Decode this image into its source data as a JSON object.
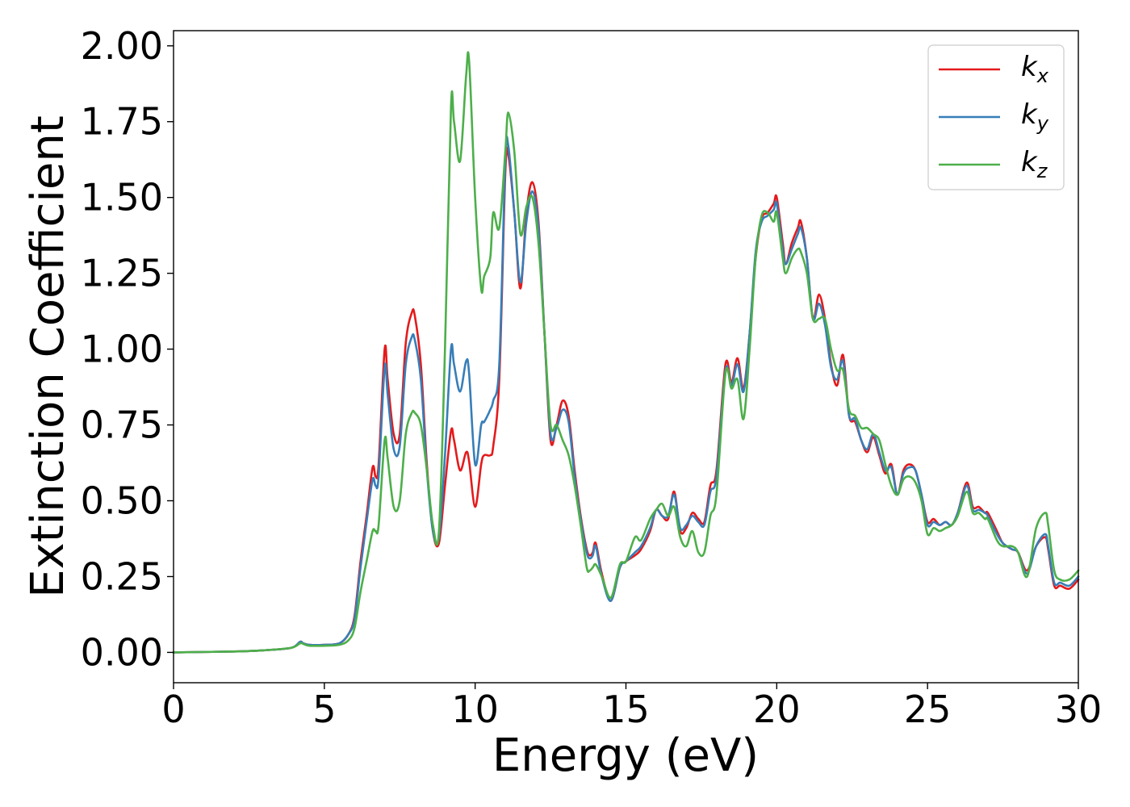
{
  "chart_data": {
    "type": "line",
    "xlabel": "Energy (eV)",
    "ylabel": "Extinction Coefficient",
    "xlim": [
      0,
      30
    ],
    "ylim": [
      -0.1,
      2.05
    ],
    "xticks": [
      0,
      5,
      10,
      15,
      20,
      25,
      30
    ],
    "xtick_labels": [
      "0",
      "5",
      "10",
      "15",
      "20",
      "25",
      "30"
    ],
    "yticks": [
      0,
      0.25,
      0.5,
      0.75,
      1.0,
      1.25,
      1.5,
      1.75,
      2.0
    ],
    "ytick_labels": [
      "0.00",
      "0.25",
      "0.50",
      "0.75",
      "1.00",
      "1.25",
      "1.50",
      "1.75",
      "2.00"
    ],
    "grid": false,
    "legend_position": "top-right",
    "series": [
      {
        "name": "k_x",
        "label_main": "k",
        "label_sub": "x",
        "color": "#e41a1c",
        "x": [
          0,
          2,
          3,
          3.9,
          4.2,
          4.3,
          4.5,
          5,
          5.5,
          5.8,
          6.0,
          6.2,
          6.4,
          6.6,
          6.7,
          6.8,
          7.0,
          7.1,
          7.3,
          7.5,
          7.7,
          7.9,
          8.0,
          8.2,
          8.4,
          8.6,
          8.8,
          9.0,
          9.2,
          9.3,
          9.5,
          9.7,
          9.8,
          10.0,
          10.2,
          10.3,
          10.5,
          10.6,
          10.8,
          11.0,
          11.1,
          11.3,
          11.5,
          11.7,
          11.9,
          12.1,
          12.3,
          12.5,
          12.7,
          12.9,
          13.1,
          13.3,
          13.5,
          13.7,
          13.8,
          13.9,
          14.0,
          14.2,
          14.5,
          14.8,
          15.0,
          15.3,
          15.5,
          15.8,
          16.0,
          16.2,
          16.4,
          16.6,
          16.8,
          17.0,
          17.2,
          17.4,
          17.6,
          17.8,
          18.0,
          18.3,
          18.5,
          18.7,
          18.9,
          19.1,
          19.3,
          19.5,
          19.7,
          19.9,
          20.0,
          20.2,
          20.3,
          20.5,
          20.7,
          20.8,
          21.0,
          21.2,
          21.4,
          21.6,
          21.8,
          22.0,
          22.2,
          22.4,
          22.6,
          22.8,
          23.0,
          23.2,
          23.4,
          23.6,
          23.8,
          24.0,
          24.2,
          24.4,
          24.6,
          24.8,
          25.0,
          25.2,
          25.4,
          25.6,
          25.8,
          26.0,
          26.3,
          26.5,
          26.7,
          26.9,
          27.0,
          27.3,
          27.5,
          27.8,
          28.0,
          28.3,
          28.6,
          28.9,
          29.0,
          29.2,
          29.4,
          29.7,
          30.0
        ],
        "y": [
          0.0,
          0.003,
          0.007,
          0.015,
          0.035,
          0.03,
          0.025,
          0.025,
          0.03,
          0.06,
          0.12,
          0.3,
          0.45,
          0.61,
          0.58,
          0.62,
          1.0,
          0.9,
          0.72,
          0.72,
          1.02,
          1.12,
          1.11,
          0.95,
          0.62,
          0.4,
          0.36,
          0.55,
          0.73,
          0.7,
          0.6,
          0.66,
          0.63,
          0.48,
          0.62,
          0.65,
          0.65,
          0.68,
          0.9,
          1.58,
          1.64,
          1.45,
          1.2,
          1.45,
          1.55,
          1.42,
          1.05,
          0.7,
          0.75,
          0.83,
          0.78,
          0.6,
          0.45,
          0.34,
          0.32,
          0.33,
          0.36,
          0.26,
          0.17,
          0.28,
          0.3,
          0.32,
          0.34,
          0.4,
          0.47,
          0.45,
          0.44,
          0.53,
          0.4,
          0.41,
          0.46,
          0.44,
          0.43,
          0.55,
          0.6,
          0.95,
          0.89,
          0.97,
          0.87,
          1.05,
          1.3,
          1.43,
          1.45,
          1.48,
          1.5,
          1.35,
          1.28,
          1.35,
          1.4,
          1.42,
          1.3,
          1.1,
          1.18,
          1.1,
          0.95,
          0.88,
          0.98,
          0.78,
          0.76,
          0.7,
          0.66,
          0.71,
          0.65,
          0.59,
          0.62,
          0.52,
          0.6,
          0.62,
          0.6,
          0.52,
          0.43,
          0.44,
          0.42,
          0.43,
          0.42,
          0.46,
          0.56,
          0.48,
          0.48,
          0.46,
          0.46,
          0.4,
          0.36,
          0.34,
          0.33,
          0.27,
          0.35,
          0.38,
          0.34,
          0.22,
          0.22,
          0.21,
          0.24
        ]
      },
      {
        "name": "k_y",
        "label_main": "k",
        "label_sub": "y",
        "color": "#377eb8",
        "x": [
          0,
          2,
          3,
          3.9,
          4.2,
          4.3,
          4.5,
          5,
          5.5,
          5.8,
          6.0,
          6.2,
          6.4,
          6.6,
          6.7,
          6.8,
          7.0,
          7.1,
          7.3,
          7.5,
          7.7,
          7.9,
          8.0,
          8.2,
          8.4,
          8.6,
          8.8,
          9.0,
          9.2,
          9.3,
          9.5,
          9.7,
          9.8,
          10.0,
          10.2,
          10.3,
          10.5,
          10.6,
          10.8,
          11.0,
          11.1,
          11.3,
          11.5,
          11.7,
          11.9,
          12.1,
          12.3,
          12.5,
          12.7,
          12.9,
          13.1,
          13.3,
          13.5,
          13.7,
          13.8,
          13.9,
          14.0,
          14.2,
          14.5,
          14.8,
          15.0,
          15.3,
          15.5,
          15.8,
          16.0,
          16.2,
          16.4,
          16.6,
          16.8,
          17.0,
          17.2,
          17.4,
          17.6,
          17.8,
          18.0,
          18.3,
          18.5,
          18.7,
          18.9,
          19.1,
          19.3,
          19.5,
          19.7,
          19.9,
          20.0,
          20.2,
          20.3,
          20.5,
          20.7,
          20.8,
          21.0,
          21.2,
          21.4,
          21.6,
          21.8,
          22.0,
          22.2,
          22.4,
          22.6,
          22.8,
          23.0,
          23.2,
          23.4,
          23.6,
          23.8,
          24.0,
          24.2,
          24.4,
          24.6,
          24.8,
          25.0,
          25.2,
          25.4,
          25.6,
          25.8,
          26.0,
          26.3,
          26.5,
          26.7,
          26.9,
          27.0,
          27.3,
          27.5,
          27.8,
          28.0,
          28.3,
          28.6,
          28.9,
          29.0,
          29.2,
          29.4,
          29.7,
          30.0
        ],
        "y": [
          0.0,
          0.003,
          0.007,
          0.015,
          0.035,
          0.03,
          0.025,
          0.025,
          0.03,
          0.06,
          0.11,
          0.28,
          0.43,
          0.57,
          0.55,
          0.58,
          0.94,
          0.85,
          0.67,
          0.68,
          0.95,
          1.04,
          1.03,
          0.9,
          0.6,
          0.4,
          0.38,
          0.65,
          1.0,
          0.95,
          0.86,
          0.96,
          0.92,
          0.62,
          0.75,
          0.76,
          0.8,
          0.83,
          0.95,
          1.62,
          1.67,
          1.45,
          1.22,
          1.42,
          1.52,
          1.4,
          1.05,
          0.72,
          0.74,
          0.8,
          0.76,
          0.58,
          0.44,
          0.33,
          0.31,
          0.32,
          0.35,
          0.25,
          0.17,
          0.28,
          0.3,
          0.33,
          0.35,
          0.41,
          0.47,
          0.45,
          0.45,
          0.52,
          0.41,
          0.42,
          0.45,
          0.43,
          0.42,
          0.53,
          0.58,
          0.93,
          0.88,
          0.95,
          0.86,
          1.05,
          1.32,
          1.42,
          1.44,
          1.46,
          1.48,
          1.33,
          1.28,
          1.33,
          1.38,
          1.4,
          1.3,
          1.1,
          1.15,
          1.08,
          0.94,
          0.9,
          0.96,
          0.78,
          0.77,
          0.7,
          0.67,
          0.72,
          0.66,
          0.6,
          0.61,
          0.52,
          0.59,
          0.61,
          0.6,
          0.52,
          0.42,
          0.43,
          0.42,
          0.43,
          0.42,
          0.46,
          0.55,
          0.47,
          0.47,
          0.46,
          0.45,
          0.39,
          0.36,
          0.34,
          0.33,
          0.26,
          0.35,
          0.39,
          0.35,
          0.23,
          0.23,
          0.22,
          0.25
        ]
      },
      {
        "name": "k_z",
        "label_main": "k",
        "label_sub": "z",
        "color": "#4daf4a",
        "x": [
          0,
          2,
          3,
          3.9,
          4.2,
          4.3,
          4.5,
          5,
          5.5,
          5.8,
          6.0,
          6.2,
          6.4,
          6.6,
          6.7,
          6.8,
          7.0,
          7.1,
          7.3,
          7.5,
          7.7,
          7.9,
          8.0,
          8.2,
          8.4,
          8.6,
          8.8,
          9.0,
          9.2,
          9.3,
          9.5,
          9.7,
          9.8,
          10.0,
          10.2,
          10.3,
          10.5,
          10.6,
          10.8,
          11.0,
          11.1,
          11.3,
          11.5,
          11.7,
          11.9,
          12.1,
          12.3,
          12.5,
          12.7,
          12.9,
          13.1,
          13.3,
          13.5,
          13.7,
          13.8,
          13.9,
          14.0,
          14.2,
          14.5,
          14.8,
          15.0,
          15.3,
          15.5,
          15.8,
          16.0,
          16.2,
          16.4,
          16.6,
          16.8,
          17.0,
          17.2,
          17.4,
          17.6,
          17.8,
          18.0,
          18.3,
          18.5,
          18.7,
          18.9,
          19.1,
          19.3,
          19.5,
          19.7,
          19.9,
          20.0,
          20.2,
          20.3,
          20.5,
          20.7,
          20.8,
          21.0,
          21.2,
          21.4,
          21.6,
          21.8,
          22.0,
          22.2,
          22.4,
          22.6,
          22.8,
          23.0,
          23.2,
          23.4,
          23.6,
          23.8,
          24.0,
          24.2,
          24.4,
          24.6,
          24.8,
          25.0,
          25.2,
          25.4,
          25.6,
          25.8,
          26.0,
          26.3,
          26.5,
          26.7,
          26.9,
          27.0,
          27.3,
          27.5,
          27.8,
          28.0,
          28.3,
          28.6,
          28.9,
          29.0,
          29.2,
          29.4,
          29.7,
          30.0
        ],
        "y": [
          0.0,
          0.003,
          0.007,
          0.015,
          0.03,
          0.028,
          0.022,
          0.022,
          0.025,
          0.04,
          0.08,
          0.2,
          0.3,
          0.4,
          0.4,
          0.42,
          0.7,
          0.64,
          0.48,
          0.5,
          0.72,
          0.79,
          0.79,
          0.75,
          0.6,
          0.42,
          0.4,
          1.0,
          1.8,
          1.75,
          1.62,
          1.9,
          1.95,
          1.5,
          1.2,
          1.24,
          1.3,
          1.45,
          1.4,
          1.65,
          1.78,
          1.65,
          1.38,
          1.47,
          1.5,
          1.35,
          1.05,
          0.75,
          0.75,
          0.7,
          0.65,
          0.55,
          0.42,
          0.28,
          0.27,
          0.28,
          0.29,
          0.25,
          0.18,
          0.29,
          0.3,
          0.38,
          0.37,
          0.44,
          0.47,
          0.49,
          0.45,
          0.48,
          0.38,
          0.35,
          0.4,
          0.33,
          0.33,
          0.45,
          0.52,
          0.92,
          0.87,
          0.9,
          0.77,
          1.0,
          1.3,
          1.44,
          1.45,
          1.42,
          1.45,
          1.3,
          1.25,
          1.3,
          1.33,
          1.32,
          1.25,
          1.1,
          1.1,
          1.1,
          1.0,
          0.93,
          0.93,
          0.8,
          0.78,
          0.74,
          0.74,
          0.72,
          0.7,
          0.62,
          0.55,
          0.52,
          0.57,
          0.58,
          0.56,
          0.5,
          0.39,
          0.41,
          0.4,
          0.41,
          0.42,
          0.45,
          0.53,
          0.46,
          0.46,
          0.44,
          0.44,
          0.37,
          0.35,
          0.35,
          0.33,
          0.25,
          0.41,
          0.46,
          0.42,
          0.27,
          0.24,
          0.24,
          0.27
        ]
      }
    ]
  }
}
